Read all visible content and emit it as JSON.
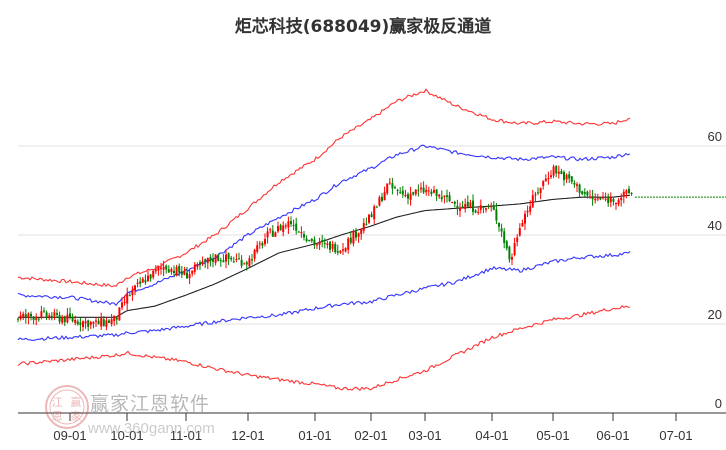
{
  "title": "炬芯科技(688049)赢家极反通道",
  "watermark": {
    "name": "赢家江恩软件",
    "url": "www.360gann.com",
    "seal": [
      "江",
      "赢",
      "恩",
      "家"
    ]
  },
  "colors": {
    "up": "#ff0000",
    "down": "#008000",
    "outer_band": "#ff3333",
    "inner_band": "#3333ff",
    "ma": "#222222",
    "last_price_line": "#008000",
    "grid": "#e0e0e0"
  },
  "chart_data": {
    "type": "candlestick-with-bands",
    "title": "炬芯科技(688049)赢家极反通道",
    "xlabel": "",
    "ylabel": "",
    "ylim": [
      0,
      65
    ],
    "grid": true,
    "y_ticks": [
      0,
      20,
      40,
      60
    ],
    "x_ticks": [
      "09-01",
      "10-01",
      "11-01",
      "12-01",
      "01-01",
      "02-01",
      "03-01",
      "04-01",
      "05-01",
      "06-01",
      "07-01"
    ],
    "legend": null,
    "series": [
      {
        "name": "upper_outer_band",
        "color": "red",
        "x": [
          "08-01",
          "09-01",
          "09-25",
          "10-01",
          "10-15",
          "11-01",
          "11-15",
          "12-01",
          "12-15",
          "01-01",
          "01-15",
          "02-01",
          "02-15",
          "03-01",
          "03-15",
          "04-01",
          "04-15",
          "05-01",
          "05-15",
          "06-01",
          "06-10"
        ],
        "values": [
          30.5,
          29.5,
          28.5,
          30.5,
          32.5,
          36,
          40,
          46,
          52,
          57,
          62,
          66,
          70,
          72.5,
          69,
          66,
          65,
          65.5,
          65,
          65,
          66.5
        ]
      },
      {
        "name": "upper_inner_band",
        "color": "blue",
        "x": [
          "08-01",
          "09-01",
          "09-25",
          "10-01",
          "10-15",
          "11-01",
          "11-15",
          "12-01",
          "12-15",
          "01-01",
          "01-15",
          "02-01",
          "02-15",
          "03-01",
          "03-15",
          "04-01",
          "04-15",
          "05-01",
          "05-15",
          "06-01",
          "06-10"
        ],
        "values": [
          26.5,
          26,
          24.5,
          27,
          29,
          32,
          35,
          40,
          44,
          48,
          52,
          55,
          58,
          60,
          58.5,
          57.5,
          57,
          57.5,
          57,
          57.5,
          58.5
        ]
      },
      {
        "name": "moving_average",
        "color": "black",
        "x": [
          "08-01",
          "09-01",
          "09-25",
          "10-01",
          "10-15",
          "11-01",
          "11-15",
          "12-01",
          "12-15",
          "01-01",
          "01-15",
          "02-01",
          "02-15",
          "03-01",
          "03-15",
          "04-01",
          "04-15",
          "05-01",
          "05-15",
          "06-01",
          "06-10"
        ],
        "values": [
          21.5,
          21.5,
          21.5,
          23,
          24,
          26.5,
          29,
          32.5,
          36,
          38,
          40,
          42,
          44,
          45.5,
          46,
          46.5,
          47,
          48,
          48.5,
          48.5,
          49
        ]
      },
      {
        "name": "lower_inner_band",
        "color": "blue",
        "x": [
          "08-01",
          "09-01",
          "09-25",
          "10-01",
          "10-15",
          "11-01",
          "11-15",
          "12-01",
          "12-15",
          "01-01",
          "01-15",
          "02-01",
          "02-15",
          "03-01",
          "03-15",
          "04-01",
          "04-15",
          "05-01",
          "05-15",
          "06-01",
          "06-10"
        ],
        "values": [
          16.5,
          17,
          17.5,
          18,
          18.5,
          19.5,
          20.5,
          21.5,
          22,
          23.5,
          24.5,
          25,
          26.5,
          28,
          29.5,
          32.5,
          32,
          34,
          35,
          35.5,
          36
        ]
      },
      {
        "name": "lower_outer_band",
        "color": "red",
        "x": [
          "08-01",
          "09-01",
          "09-25",
          "10-01",
          "10-15",
          "11-01",
          "11-15",
          "12-01",
          "12-15",
          "01-01",
          "01-15",
          "02-01",
          "02-15",
          "03-01",
          "03-15",
          "04-01",
          "04-15",
          "05-01",
          "05-15",
          "06-01",
          "06-10"
        ],
        "values": [
          11,
          12,
          13,
          13.5,
          12.5,
          11.5,
          10,
          8.5,
          7.5,
          6.5,
          5.5,
          5.5,
          7.5,
          9.5,
          13,
          17,
          19,
          21,
          22,
          23.5,
          24
        ]
      },
      {
        "name": "close_price",
        "color": "candles",
        "x": [
          "08-01",
          "08-15",
          "09-01",
          "09-15",
          "09-25",
          "10-01",
          "10-10",
          "10-20",
          "11-01",
          "11-15",
          "12-01",
          "12-10",
          "12-20",
          "01-01",
          "01-15",
          "02-01",
          "02-10",
          "02-20",
          "03-01",
          "03-15",
          "03-25",
          "04-01",
          "04-05",
          "04-10",
          "04-15",
          "04-25",
          "05-01",
          "05-10",
          "05-20",
          "06-01",
          "06-10"
        ],
        "values": [
          21.5,
          22,
          21,
          20,
          21,
          26,
          30,
          33,
          31,
          35,
          34,
          40,
          43,
          38,
          37,
          44,
          51,
          49,
          50,
          47,
          46,
          46,
          42,
          34,
          43,
          51,
          55,
          52,
          48,
          48,
          49.5
        ]
      },
      {
        "name": "last_price_level",
        "color": "green",
        "values": [
          48.5
        ]
      }
    ]
  }
}
